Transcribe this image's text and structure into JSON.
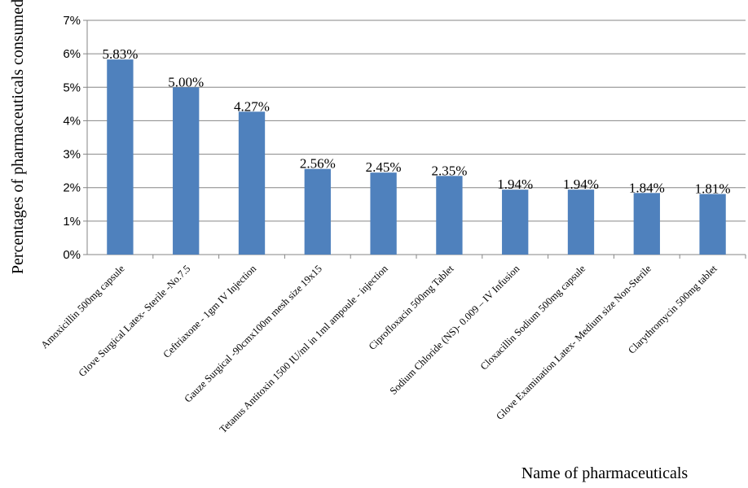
{
  "chart_data": {
    "type": "bar",
    "title": "",
    "xlabel": "Name of pharmaceuticals",
    "ylabel": "Percentages of pharmaceuticals consumed",
    "ylim": [
      0,
      7
    ],
    "yticks": [
      "0%",
      "1%",
      "2%",
      "3%",
      "4%",
      "5%",
      "6%",
      "7%"
    ],
    "grid": true,
    "bar_color": "#4F81BD",
    "categories": [
      "Amoxicillin 500mg capsule",
      "Glove Surgical Latex- Sterile -No.7.5",
      "Ceftriaxone - 1gm IV Injection",
      "Gauze Surgical -90cmx100m mesh size 19x15",
      "Tetanus Antitoxin 1500 IU/ml in 1ml ampoule - injection",
      "Ciprofloxacin 500mg Tablet",
      "Sodium Chloride (NS)- 0.009 – IV Infusion",
      "Cloxacillin Sodium 500mg capsule",
      "Glove Examination Latex- Medium size Non-Sterile",
      "Clarythromycin 500mg tablet"
    ],
    "values": [
      5.83,
      5.0,
      4.27,
      2.56,
      2.45,
      2.35,
      1.94,
      1.94,
      1.84,
      1.81
    ],
    "data_labels": [
      "5.83%",
      "5.00%",
      "4.27%",
      "2.56%",
      "2.45%",
      "2.35%",
      "1.94%",
      "1.94%",
      "1.84%",
      "1.81%"
    ]
  }
}
